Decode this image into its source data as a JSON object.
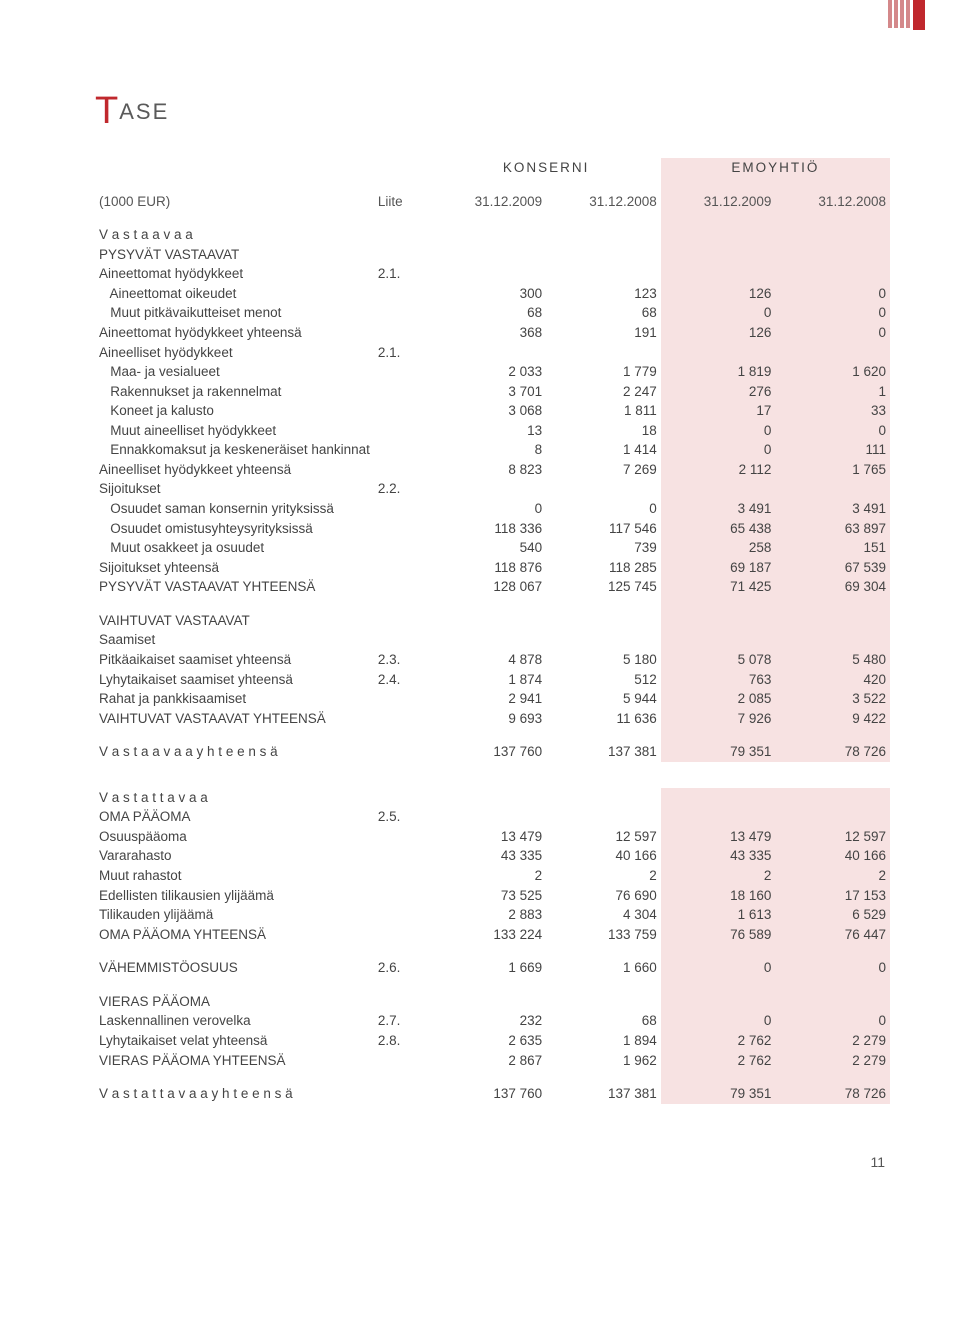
{
  "title_big": "T",
  "title_rest": "ASE",
  "page_number": "11",
  "columns": {
    "group1": "KONSERNI",
    "group2": "EMOYHTIÖ",
    "currency": "(1000 EUR)",
    "liite": "Liite",
    "p1": "31.12.2009",
    "p2": "31.12.2008",
    "p3": "31.12.2009",
    "p4": "31.12.2008"
  },
  "r": {
    "vastaavaa": "V a s t a a v a a",
    "pysyvat_vastaavat": "PYSYVÄT VASTAAVAT",
    "aineettomat_hyodykkeet": "Aineettomat hyödykkeet",
    "aineettomat_hyodykkeet_liite": "2.1.",
    "aineettomat_oikeudet": {
      "label": "   Aineettomat oikeudet",
      "v": [
        "300",
        "123",
        "126",
        "0"
      ]
    },
    "muut_pitkavaik": {
      "label": "   Muut pitkävaikutteiset menot",
      "v": [
        "68",
        "68",
        "0",
        "0"
      ]
    },
    "aineettomat_yht": {
      "label": "Aineettomat hyödykkeet yhteensä",
      "v": [
        "368",
        "191",
        "126",
        "0"
      ]
    },
    "aineelliset_hyodykkeet": "Aineelliset hyödykkeet",
    "aineelliset_hyodykkeet_liite": "2.1.",
    "maa_vesi": {
      "label": "   Maa- ja vesialueet",
      "v": [
        "2 033",
        "1 779",
        "1 819",
        "1 620"
      ]
    },
    "rakennukset": {
      "label": "   Rakennukset ja rakennelmat",
      "v": [
        "3 701",
        "2 247",
        "276",
        "1"
      ]
    },
    "koneet": {
      "label": "   Koneet ja kalusto",
      "v": [
        "3 068",
        "1 811",
        "17",
        "33"
      ]
    },
    "muut_aineell": {
      "label": "   Muut aineelliset hyödykkeet",
      "v": [
        "13",
        "18",
        "0",
        "0"
      ]
    },
    "ennakko": {
      "label": "   Ennakkomaksut ja keskeneräiset hankinnat",
      "v": [
        "8",
        "1 414",
        "0",
        "111"
      ]
    },
    "aineelliset_yht": {
      "label": "Aineelliset hyödykkeet yhteensä",
      "v": [
        "8 823",
        "7 269",
        "2 112",
        "1 765"
      ]
    },
    "sijoitukset": "Sijoitukset",
    "sijoitukset_liite": "2.2.",
    "osuudet_saman": {
      "label": "   Osuudet saman konsernin yrityksissä",
      "v": [
        "0",
        "0",
        "3 491",
        "3 491"
      ]
    },
    "osuudet_omist": {
      "label": "   Osuudet omistusyhteysyrityksissä",
      "v": [
        "118 336",
        "117 546",
        "65 438",
        "63 897"
      ]
    },
    "muut_osakkeet": {
      "label": "   Muut osakkeet ja osuudet",
      "v": [
        "540",
        "739",
        "258",
        "151"
      ]
    },
    "sijoitukset_yht": {
      "label": "Sijoitukset yhteensä",
      "v": [
        "118 876",
        "118 285",
        "69 187",
        "67 539"
      ]
    },
    "pysyvat_yhteensa": {
      "label": "PYSYVÄT VASTAAVAT YHTEENSÄ",
      "v": [
        "128 067",
        "125 745",
        "71 425",
        "69 304"
      ]
    },
    "vaihtuvat_vastaavat": "VAIHTUVAT VASTAAVAT",
    "saamiset": "Saamiset",
    "pitkaaik": {
      "label": "Pitkäaikaiset saamiset yhteensä",
      "liite": "2.3.",
      "v": [
        "4 878",
        "5 180",
        "5 078",
        "5 480"
      ]
    },
    "lyhytaik": {
      "label": "Lyhytaikaiset saamiset yhteensä",
      "liite": "2.4.",
      "v": [
        "1 874",
        "512",
        "763",
        "420"
      ]
    },
    "rahat": {
      "label": "Rahat ja pankkisaamiset",
      "v": [
        "2 941",
        "5 944",
        "2 085",
        "3 522"
      ]
    },
    "vaihtuvat_yht": {
      "label": "VAIHTUVAT VASTAAVAT YHTEENSÄ",
      "v": [
        "9 693",
        "11 636",
        "7 926",
        "9 422"
      ]
    },
    "vastaavaa_yht": {
      "label": "V a s t a a v a a  y h t e e n s ä",
      "v": [
        "137 760",
        "137 381",
        "79 351",
        "78 726"
      ]
    },
    "vastattavaa": "V a s t a t t a v a a",
    "oma_paaoma": "OMA PÄÄOMA",
    "oma_paaoma_liite": "2.5.",
    "osuuspaaoma": {
      "label": "Osuuspääoma",
      "v": [
        "13 479",
        "12 597",
        "13 479",
        "12 597"
      ]
    },
    "vararahasto": {
      "label": "Vararahasto",
      "v": [
        "43 335",
        "40 166",
        "43 335",
        "40 166"
      ]
    },
    "muut_rahastot": {
      "label": "Muut rahastot",
      "v": [
        "2",
        "2",
        "2",
        "2"
      ]
    },
    "edellisten": {
      "label": "Edellisten tilikausien ylijäämä",
      "v": [
        "73 525",
        "76 690",
        "18 160",
        "17 153"
      ]
    },
    "tilikauden": {
      "label": "Tilikauden ylijäämä",
      "v": [
        "2 883",
        "4 304",
        "1 613",
        "6 529"
      ]
    },
    "oma_paaoma_yht": {
      "label": "OMA PÄÄOMA YHTEENSÄ",
      "v": [
        "133 224",
        "133 759",
        "76 589",
        "76 447"
      ]
    },
    "vahemmisto": {
      "label": "VÄHEMMISTÖOSUUS",
      "liite": "2.6.",
      "v": [
        "1 669",
        "1 660",
        "0",
        "0"
      ]
    },
    "vieras_paaoma": "VIERAS PÄÄOMA",
    "laskennallinen": {
      "label": "Laskennallinen verovelka",
      "liite": "2.7.",
      "v": [
        "232",
        "68",
        "0",
        "0"
      ]
    },
    "lyhytaik_velat": {
      "label": "Lyhytaikaiset velat yhteensä",
      "liite": "2.8.",
      "v": [
        "2 635",
        "1 894",
        "2 762",
        "2 279"
      ]
    },
    "vieras_yht": {
      "label": "VIERAS PÄÄOMA YHTEENSÄ",
      "v": [
        "2 867",
        "1 962",
        "2 762",
        "2 279"
      ]
    },
    "vastattavaa_yht": {
      "label": "V a s t a t t a v a a  y h t e e n s ä",
      "v": [
        "137 760",
        "137 381",
        "79 351",
        "78 726"
      ]
    }
  },
  "colors": {
    "accent": "#c0282d",
    "pink": "#f7e2e2",
    "text": "#444444",
    "bg": "#ffffff"
  }
}
